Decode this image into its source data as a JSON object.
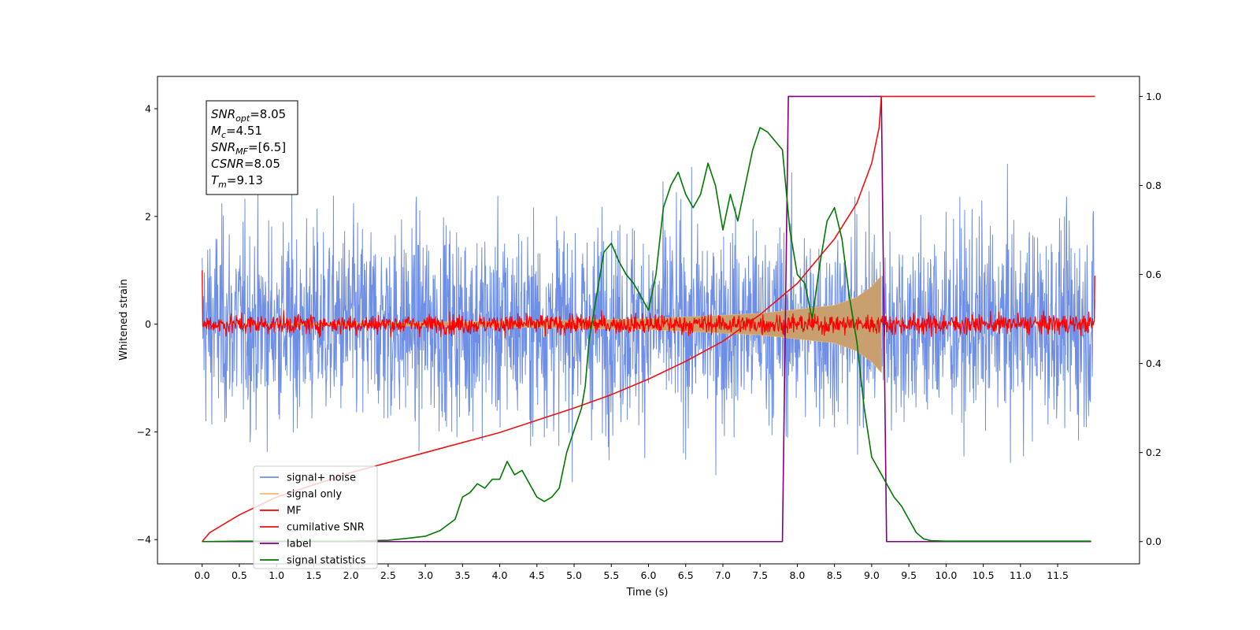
{
  "chart_data": {
    "type": "line",
    "xlabel": "Time (s)",
    "ylabel": "Whitened strain",
    "xlim": [
      -0.6,
      12.6
    ],
    "ylim_left": [
      -4.45,
      4.6
    ],
    "ylim_right": [
      -0.05,
      1.045
    ],
    "x_ticks": [
      "0.0",
      "0.5",
      "1.0",
      "1.5",
      "2.0",
      "2.5",
      "3.0",
      "3.5",
      "4.0",
      "4.5",
      "5.0",
      "5.5",
      "6.0",
      "6.5",
      "7.0",
      "7.5",
      "8.0",
      "8.5",
      "9.0",
      "9.5",
      "10.0",
      "10.5",
      "11.0",
      "11.5"
    ],
    "y_ticks_left": [
      "4",
      "2",
      "0",
      "−2",
      "−4"
    ],
    "y_ticks_right": [
      "1.0",
      "0.8",
      "0.6",
      "0.4",
      "0.2",
      "0.0"
    ],
    "legend_position": "lower-left",
    "colors": {
      "signal_noise": "#6f8fe6",
      "signal_only": "#f5b96e",
      "mf": "#ff0000",
      "cumulative_snr": "#ee1111",
      "label": "#800080",
      "signal_statistics": "#007700",
      "chirp_fill": "#c8a070"
    },
    "series": [
      {
        "name": "signal+ noise",
        "axis": "left",
        "style": "noise",
        "x_range": [
          0.0,
          12.0
        ],
        "envelope": 2.2,
        "peak": 4.15
      },
      {
        "name": "signal only",
        "axis": "left",
        "style": "chirp",
        "x": [
          0.0,
          4.0,
          6.0,
          7.5,
          8.5,
          8.8,
          9.0,
          9.13
        ],
        "y": [
          0.0,
          0.05,
          0.1,
          0.2,
          0.35,
          0.5,
          0.7,
          0.9
        ]
      },
      {
        "name": "MF",
        "axis": "left",
        "style": "noise",
        "x_range": [
          0.0,
          12.0
        ],
        "envelope": 0.2,
        "peak": 0.5
      },
      {
        "name": "cumilative SNR",
        "axis": "right",
        "x": [
          0.0,
          0.1,
          0.5,
          1.0,
          2.0,
          3.0,
          4.0,
          5.0,
          5.5,
          6.0,
          6.5,
          7.0,
          7.5,
          8.0,
          8.5,
          8.8,
          9.0,
          9.1,
          9.13,
          12.0
        ],
        "y": [
          0.0,
          0.02,
          0.06,
          0.1,
          0.155,
          0.2,
          0.245,
          0.3,
          0.33,
          0.365,
          0.405,
          0.45,
          0.51,
          0.58,
          0.68,
          0.76,
          0.85,
          0.93,
          1.0,
          1.0
        ]
      },
      {
        "name": "label",
        "axis": "right",
        "x": [
          0.0,
          7.8,
          7.88,
          9.13,
          9.2,
          11.95
        ],
        "y": [
          0.0,
          0.0,
          1.0,
          1.0,
          0.0,
          0.0
        ]
      },
      {
        "name": "signal statistics",
        "axis": "right",
        "x": [
          0.0,
          0.5,
          1.0,
          1.5,
          2.0,
          2.5,
          2.8,
          3.0,
          3.2,
          3.4,
          3.5,
          3.6,
          3.7,
          3.8,
          3.9,
          4.0,
          4.1,
          4.2,
          4.3,
          4.4,
          4.5,
          4.6,
          4.7,
          4.8,
          4.9,
          5.0,
          5.1,
          5.15,
          5.2,
          5.3,
          5.4,
          5.5,
          5.6,
          5.7,
          5.8,
          5.9,
          6.0,
          6.1,
          6.2,
          6.3,
          6.4,
          6.5,
          6.6,
          6.7,
          6.8,
          6.9,
          7.0,
          7.1,
          7.2,
          7.3,
          7.4,
          7.5,
          7.6,
          7.7,
          7.8,
          7.9,
          8.0,
          8.1,
          8.2,
          8.3,
          8.4,
          8.5,
          8.6,
          8.7,
          8.8,
          8.9,
          9.0,
          9.1,
          9.2,
          9.3,
          9.4,
          9.5,
          9.6,
          9.7,
          9.8,
          10.0,
          10.5,
          11.0,
          11.5,
          11.95
        ],
        "y": [
          0.0,
          0.001,
          0.001,
          0.001,
          0.001,
          0.003,
          0.008,
          0.012,
          0.025,
          0.05,
          0.1,
          0.11,
          0.13,
          0.12,
          0.14,
          0.14,
          0.18,
          0.15,
          0.16,
          0.13,
          0.1,
          0.09,
          0.1,
          0.12,
          0.2,
          0.25,
          0.3,
          0.35,
          0.45,
          0.55,
          0.65,
          0.67,
          0.63,
          0.6,
          0.58,
          0.55,
          0.52,
          0.6,
          0.75,
          0.8,
          0.83,
          0.78,
          0.75,
          0.78,
          0.85,
          0.8,
          0.7,
          0.78,
          0.72,
          0.8,
          0.88,
          0.93,
          0.92,
          0.9,
          0.88,
          0.7,
          0.6,
          0.58,
          0.5,
          0.62,
          0.72,
          0.75,
          0.68,
          0.55,
          0.45,
          0.3,
          0.19,
          0.16,
          0.13,
          0.1,
          0.08,
          0.05,
          0.02,
          0.006,
          0.002,
          0.001,
          0.001,
          0.001,
          0.001,
          0.001
        ]
      }
    ]
  },
  "info_box": [
    {
      "main": "SNR",
      "sub": "opt",
      "value": "=8.05"
    },
    {
      "main": "M",
      "sub": "c",
      "value": "=4.51"
    },
    {
      "main": "SNR",
      "sub": "MF",
      "value": "=[6.5]"
    },
    {
      "main": "CSNR",
      "sub": "",
      "value": "=8.05"
    },
    {
      "main": "T",
      "sub": "m",
      "value": "=9.13"
    }
  ]
}
